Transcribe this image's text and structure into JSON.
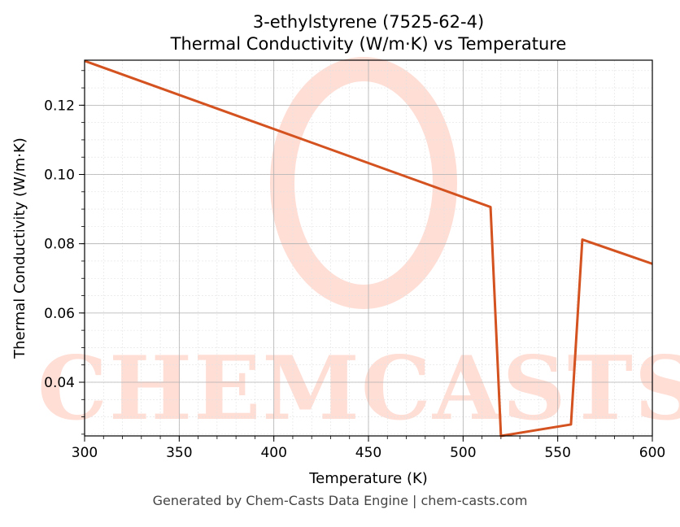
{
  "chart_data": {
    "type": "line",
    "title": "3-ethylstyrene (7525-62-4)",
    "subtitle": "Thermal Conductivity (W/m·K) vs Temperature",
    "xlabel": "Temperature (K)",
    "ylabel": "Thermal Conductivity (W/m·K)",
    "xlim": [
      300,
      600
    ],
    "ylim": [
      0.0245,
      0.133
    ],
    "x_ticks": [
      300,
      350,
      400,
      450,
      500,
      550,
      600
    ],
    "y_ticks": [
      0.04,
      0.06,
      0.08,
      0.1,
      0.12
    ],
    "grid": true,
    "series": [
      {
        "color": "#d4521f",
        "x": [
          300,
          514.5,
          520,
          557,
          563,
          600
        ],
        "y": [
          0.1328,
          0.0906,
          0.0245,
          0.0278,
          0.0812,
          0.0742
        ]
      }
    ]
  },
  "watermark": {
    "text": "CHEMCASTS",
    "color": "#ffd6cc"
  },
  "footer": {
    "text": "Generated by Chem-Casts Data Engine | chem-casts.com"
  }
}
